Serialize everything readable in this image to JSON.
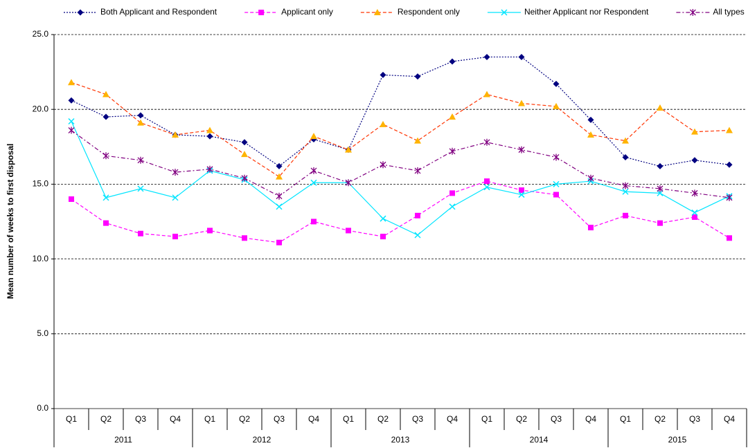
{
  "chart_data": {
    "type": "line",
    "y_label": "Mean number of weeks to first disposal",
    "categories": [
      "Q1",
      "Q2",
      "Q3",
      "Q4",
      "Q1",
      "Q2",
      "Q3",
      "Q4",
      "Q1",
      "Q2",
      "Q3",
      "Q4",
      "Q1",
      "Q2",
      "Q3",
      "Q4",
      "Q1",
      "Q2",
      "Q3",
      "Q4"
    ],
    "groups": [
      "2011",
      "2012",
      "2013",
      "2014",
      "2015"
    ],
    "ylim": [
      0,
      25
    ],
    "yticks": [
      {
        "value": 0,
        "label": "0.0"
      },
      {
        "value": 5,
        "label": "5.0"
      },
      {
        "value": 10,
        "label": "10.0"
      },
      {
        "value": 15,
        "label": "15.0"
      },
      {
        "value": 20,
        "label": "20.0"
      },
      {
        "value": 25,
        "label": "25.0"
      }
    ],
    "grid": true,
    "legend": "top",
    "series": [
      {
        "name": "Both Applicant and Respondent",
        "color": "#000080",
        "line_color": "#000080",
        "marker": "diamond",
        "dash": "dotted",
        "values": [
          20.6,
          19.5,
          19.6,
          18.3,
          18.2,
          17.8,
          16.2,
          18.0,
          17.3,
          22.3,
          22.2,
          23.2,
          23.5,
          23.5,
          21.7,
          19.3,
          16.8,
          16.2,
          16.6,
          16.3
        ]
      },
      {
        "name": "Applicant only",
        "color": "#ff00ff",
        "line_color": "#ff00ff",
        "marker": "square",
        "dash": "dashed",
        "values": [
          14.0,
          12.4,
          11.7,
          11.5,
          11.9,
          11.4,
          11.1,
          12.5,
          11.9,
          11.5,
          12.9,
          14.4,
          15.2,
          14.6,
          14.3,
          12.1,
          12.9,
          12.4,
          12.8,
          11.4
        ]
      },
      {
        "name": "Respondent only",
        "color": "#ffb300",
        "line_color": "#ff3300",
        "marker": "triangle",
        "dash": "dashed",
        "values": [
          21.8,
          21.0,
          19.1,
          18.3,
          18.6,
          17.0,
          15.5,
          18.2,
          17.3,
          19.0,
          17.9,
          19.5,
          21.0,
          20.4,
          20.2,
          18.3,
          17.9,
          20.1,
          18.5,
          18.6
        ]
      },
      {
        "name": "Neither Applicant nor Respondent",
        "color": "#00e5ff",
        "line_color": "#00e5ff",
        "marker": "x",
        "dash": "solid",
        "values": [
          19.2,
          14.1,
          14.7,
          14.1,
          15.9,
          15.3,
          13.5,
          15.1,
          15.1,
          12.7,
          11.6,
          13.5,
          14.8,
          14.3,
          15.0,
          15.2,
          14.5,
          14.4,
          13.1,
          14.2
        ]
      },
      {
        "name": "All types",
        "color": "#800080",
        "line_color": "#800080",
        "marker": "star",
        "dash": "dashdot",
        "values": [
          18.6,
          16.9,
          16.6,
          15.8,
          16.0,
          15.4,
          14.2,
          15.9,
          15.1,
          16.3,
          15.9,
          17.2,
          17.8,
          17.3,
          16.8,
          15.4,
          14.9,
          14.7,
          14.4,
          14.1
        ]
      }
    ]
  }
}
